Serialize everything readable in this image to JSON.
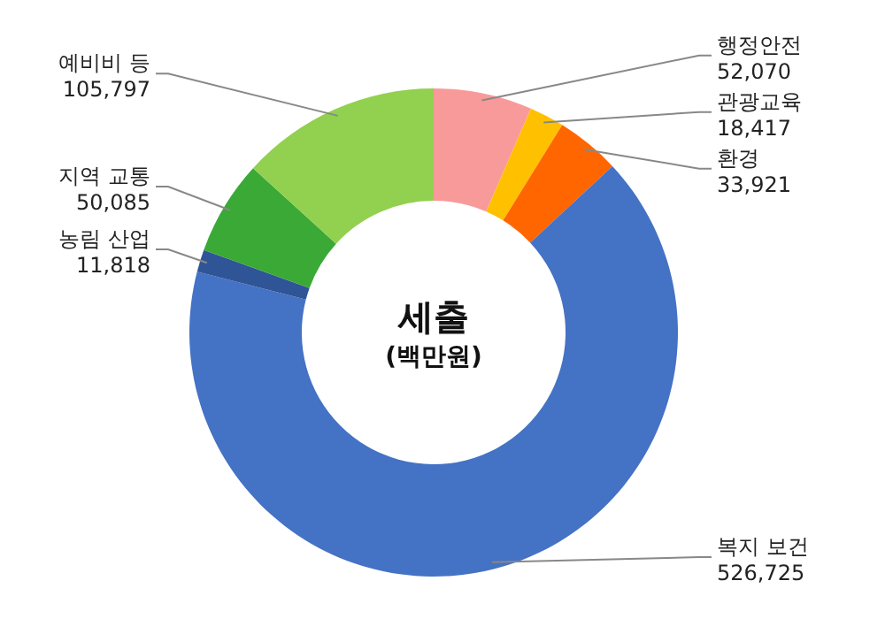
{
  "chart_data": {
    "type": "donut",
    "title": "세출",
    "subtitle": "(백만원)",
    "categories": [
      "행정안전",
      "관광교육",
      "환경",
      "복지 보건",
      "농림 산업",
      "지역 교통",
      "예비비 등"
    ],
    "values": [
      52070,
      18417,
      33921,
      526725,
      11818,
      50085,
      105797
    ],
    "value_labels": [
      "52,070",
      "18,417",
      "33,921",
      "526,725",
      "11,818",
      "50,085",
      "105,797"
    ],
    "colors": [
      "#f99a9a",
      "#ffc000",
      "#ff6600",
      "#4472c4",
      "#2f5597",
      "#3aa935",
      "#92d050"
    ]
  }
}
